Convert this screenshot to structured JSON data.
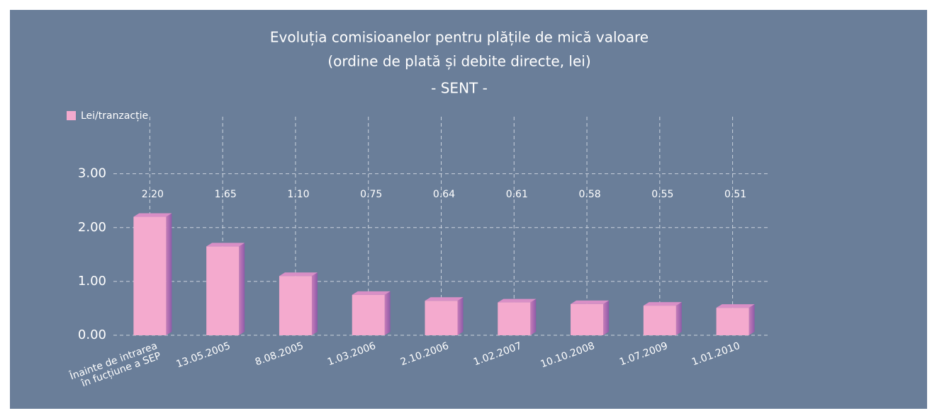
{
  "chart_data": {
    "type": "bar",
    "title": "Evoluția comisioanelor pentru plățile de mică valoare",
    "subtitle": "(ordine de plată și debite directe, lei)",
    "subtitle2": "- SENT -",
    "categories": [
      "Înainte de intrarea\nîn fucțiune a SEP",
      "13.05.2005",
      "8.08.2005",
      "1.03.2006",
      "2.10.2006",
      "1.02.2007",
      "10.10.2008",
      "1.07.2009",
      "1.01.2010"
    ],
    "series": [
      {
        "name": "Lei/tranzacție",
        "color": "#f4aace",
        "values": [
          2.2,
          1.65,
          1.1,
          0.75,
          0.64,
          0.61,
          0.58,
          0.55,
          0.51
        ],
        "value_labels": [
          "2.20",
          "1.65",
          "1.10",
          "0.75",
          "0.64",
          "0.61",
          "0.58",
          "0.55",
          "0.51"
        ]
      }
    ],
    "ylim": [
      0,
      3.6
    ],
    "yticks": [
      {
        "value": 0,
        "label": "0.00"
      },
      {
        "value": 1,
        "label": "1.00"
      },
      {
        "value": 2,
        "label": "2.00"
      },
      {
        "value": 3,
        "label": "3.00"
      }
    ],
    "grid": true,
    "legend": "top-left"
  }
}
